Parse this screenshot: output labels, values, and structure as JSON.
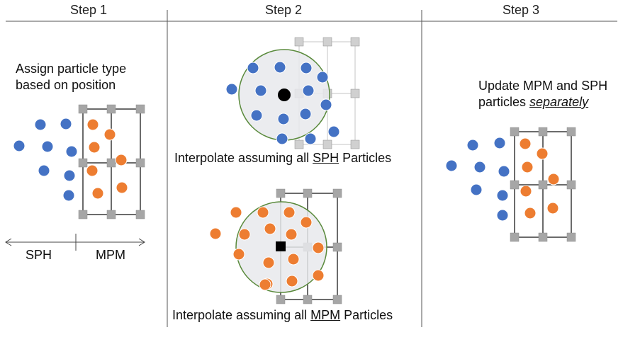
{
  "steps": [
    {
      "label": "Step 1"
    },
    {
      "label": "Step 2"
    },
    {
      "label": "Step 3"
    }
  ],
  "step1": {
    "caption_line1": "Assign particle type",
    "caption_line2": "based on position",
    "axis_left_label": "SPH",
    "axis_right_label": "MPM"
  },
  "step2": {
    "top": {
      "pre": "Interpolate assuming all ",
      "emph": "SPH",
      "post": " Particles"
    },
    "bottom": {
      "pre": "Interpolate assuming all ",
      "emph": "MPM",
      "post": " Particles"
    }
  },
  "step3": {
    "caption_line1": "Update MPM and SPH",
    "caption_pre": "particles ",
    "caption_emph": "separately"
  },
  "colors": {
    "sph_particle": "#4472c4",
    "mpm_particle": "#ed7d31",
    "grid_node": "#a6a6a6",
    "grid_line": "#3a3a3a",
    "faded_grid": "#d9d9d9",
    "kernel_fill": "#e7e9ec",
    "kernel_stroke": "#5a8a3c"
  }
}
